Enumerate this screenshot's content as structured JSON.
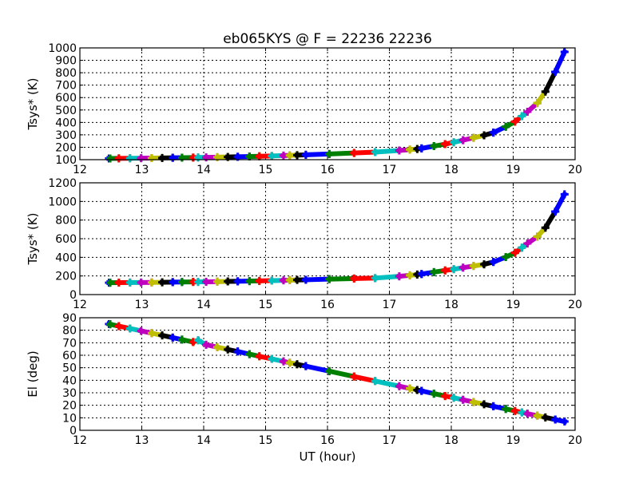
{
  "chart_data": {
    "type": "line",
    "title": "eb065KYS @ F = 22236 22236",
    "xlabel": "UT (hour)",
    "xlim": [
      12,
      20
    ],
    "xticks": [
      12,
      13,
      14,
      15,
      16,
      17,
      18,
      19,
      20
    ],
    "grid": true,
    "color_cycle": [
      "#0000ff",
      "#008000",
      "#ff0000",
      "#00bfbf",
      "#bf00bf",
      "#bfbf00",
      "#000000"
    ],
    "ut": [
      12.47,
      12.49,
      12.63,
      12.81,
      12.99,
      13.16,
      13.33,
      13.5,
      13.65,
      13.83,
      13.91,
      14.04,
      14.22,
      14.39,
      14.55,
      14.74,
      14.9,
      15.1,
      15.29,
      15.39,
      15.51,
      15.65,
      16.03,
      16.43,
      16.77,
      17.16,
      17.33,
      17.45,
      17.52,
      17.72,
      17.9,
      18.04,
      18.19,
      18.36,
      18.53,
      18.68,
      18.88,
      19.03,
      19.14,
      19.23,
      19.39,
      19.52,
      19.68,
      19.83
    ],
    "panels": [
      {
        "ylabel": "Tsys* (K)",
        "ylim": [
          100,
          1000
        ],
        "yticks": [
          100,
          200,
          300,
          400,
          500,
          600,
          700,
          800,
          900,
          1000
        ],
        "values": [
          110,
          110,
          110.6,
          111.3,
          112,
          113,
          114,
          115,
          116,
          117,
          117.5,
          118.4,
          120,
          122,
          123.5,
          125.4,
          127,
          130,
          133,
          134.6,
          136.5,
          139,
          145.6,
          154,
          161,
          174,
          181,
          186,
          191,
          209,
          225,
          240,
          257,
          276,
          296,
          318,
          365,
          406,
          450,
          486,
          556,
          648,
          807,
          968
        ]
      },
      {
        "ylabel": "Tsys* (K)",
        "ylim": [
          0,
          1200
        ],
        "yticks": [
          0,
          200,
          400,
          600,
          800,
          1000,
          1200
        ],
        "values": [
          128,
          128,
          128.6,
          129.3,
          130,
          131,
          132,
          134,
          135,
          136,
          136.5,
          137,
          139,
          141,
          143,
          145,
          147,
          150,
          153,
          155,
          157,
          159,
          166,
          172,
          177,
          196,
          207,
          215,
          221,
          241,
          259,
          273,
          289,
          307,
          325,
          350,
          403,
          449,
          504,
          549,
          622,
          718,
          891,
          1077
        ]
      },
      {
        "ylabel": "El (deg)",
        "ylim": [
          0,
          90
        ],
        "yticks": [
          0,
          10,
          20,
          30,
          40,
          50,
          60,
          70,
          80,
          90
        ],
        "values": [
          85.0,
          84.8,
          83.3,
          81.4,
          79.5,
          77.7,
          75.9,
          74.1,
          72.5,
          70.6,
          72.0,
          68.4,
          66.5,
          64.6,
          63.0,
          60.9,
          59.2,
          57.1,
          55.1,
          54.0,
          52.8,
          51.3,
          47.3,
          43.0,
          39.4,
          35.3,
          33.5,
          32.2,
          31.5,
          29.3,
          27.4,
          26.0,
          24.4,
          22.6,
          20.8,
          19.2,
          17.1,
          15.5,
          14.3,
          13.3,
          11.7,
          10.3,
          8.6,
          7.0
        ]
      }
    ]
  }
}
